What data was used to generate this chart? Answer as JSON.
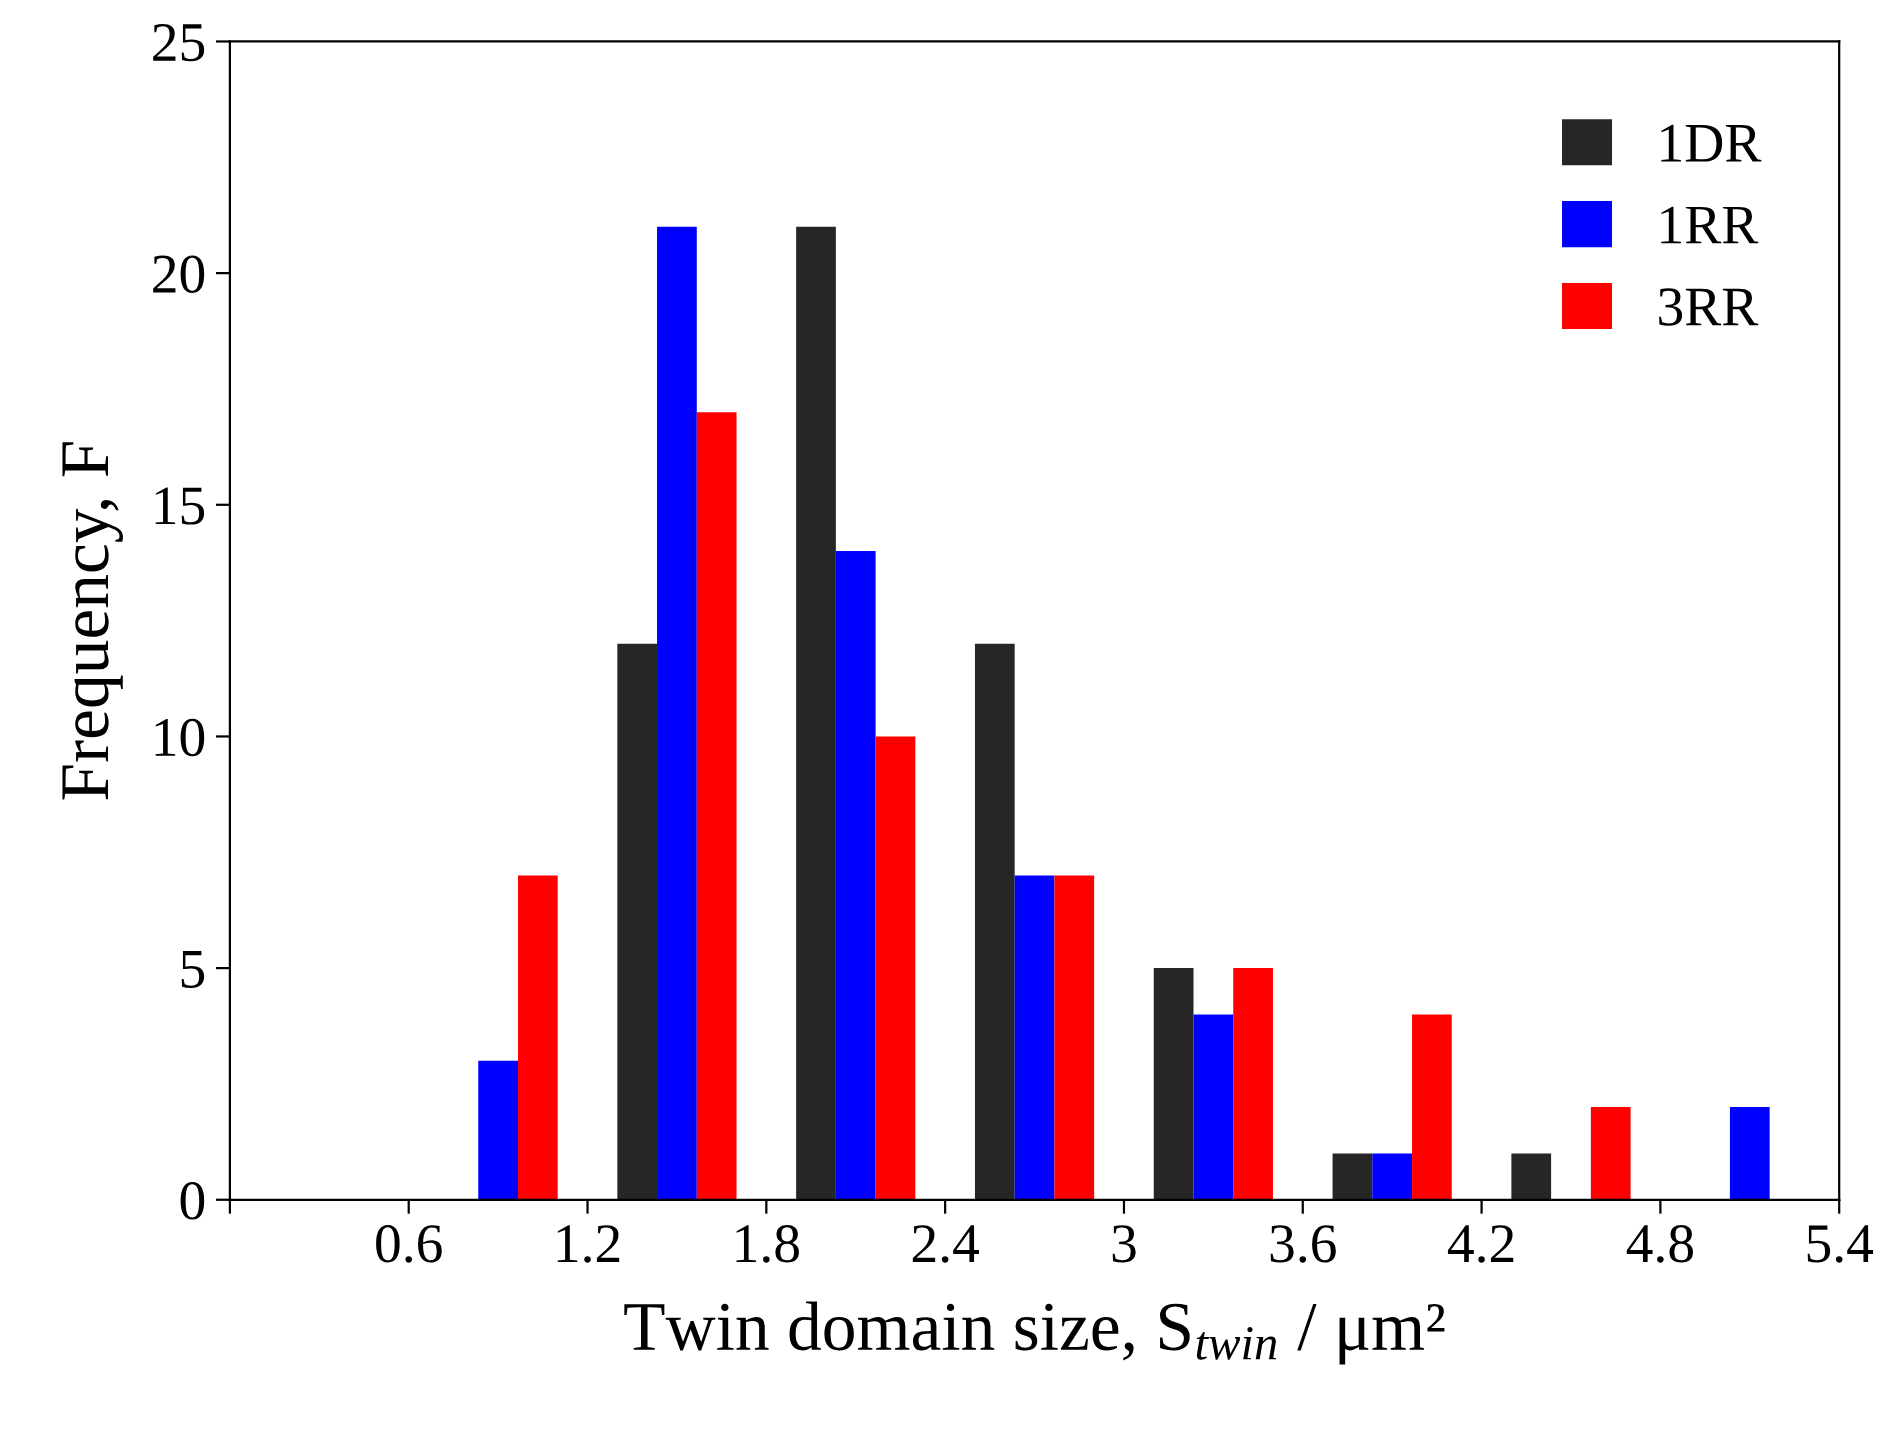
{
  "chart_data": {
    "type": "bar",
    "xlabel": "Twin domain size, S$_{twin}$ / μm²",
    "ylabel": "Frequency, F",
    "x": [
      0.9,
      1.5,
      2.1,
      2.7,
      3.3,
      3.9,
      4.5,
      5.1
    ],
    "series": [
      {
        "name": "1DR",
        "color": "#262626",
        "values": [
          0,
          12,
          21,
          12,
          5,
          1,
          1,
          0
        ]
      },
      {
        "name": "1RR",
        "color": "#0000ff",
        "values": [
          3,
          21,
          14,
          7,
          4,
          1,
          0,
          2
        ]
      },
      {
        "name": "3RR",
        "color": "#ff0000",
        "values": [
          7,
          17,
          10,
          7,
          5,
          4,
          2,
          0
        ]
      }
    ],
    "xlim": [
      0,
      5.4
    ],
    "xticks": [
      {
        "value": 0,
        "label": null
      },
      0.6,
      1.2,
      1.8,
      2.4,
      3,
      3.6,
      4.2,
      4.8,
      5.4
    ],
    "ylim": [
      0,
      25
    ],
    "yticks": [
      0,
      5,
      10,
      15,
      20,
      25
    ],
    "grid": false,
    "legend": "top right"
  }
}
